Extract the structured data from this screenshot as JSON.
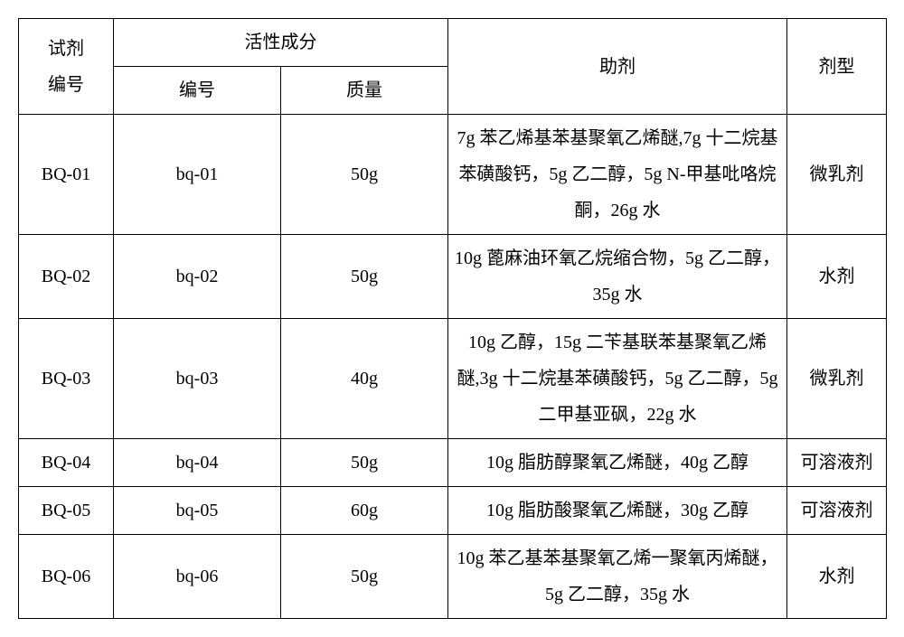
{
  "table": {
    "header": {
      "reagent_no": "试剂\n编号",
      "active_ingredient": "活性成分",
      "code": "编号",
      "mass": "质量",
      "auxiliary": "助剂",
      "form": "剂型"
    },
    "rows": [
      {
        "reagent_no": "BQ-01",
        "code": "bq-01",
        "mass": "50g",
        "auxiliary": "7g 苯乙烯基苯基聚氧乙烯醚,7g 十二烷基苯磺酸钙，5g 乙二醇，5g N-甲基吡咯烷酮，26g 水",
        "form": "微乳剂"
      },
      {
        "reagent_no": "BQ-02",
        "code": "bq-02",
        "mass": "50g",
        "auxiliary": "10g 蓖麻油环氧乙烷缩合物，5g 乙二醇，35g 水",
        "form": "水剂"
      },
      {
        "reagent_no": "BQ-03",
        "code": "bq-03",
        "mass": "40g",
        "auxiliary": "10g 乙醇，15g 二苄基联苯基聚氧乙烯醚,3g 十二烷基苯磺酸钙，5g 乙二醇，5g 二甲基亚砜，22g 水",
        "form": "微乳剂"
      },
      {
        "reagent_no": "BQ-04",
        "code": "bq-04",
        "mass": "50g",
        "auxiliary": "10g 脂肪醇聚氧乙烯醚，40g 乙醇",
        "form": "可溶液剂"
      },
      {
        "reagent_no": "BQ-05",
        "code": "bq-05",
        "mass": "60g",
        "auxiliary": "10g 脂肪酸聚氧乙烯醚，30g 乙醇",
        "form": "可溶液剂"
      },
      {
        "reagent_no": "BQ-06",
        "code": "bq-06",
        "mass": "50g",
        "auxiliary": "10g 苯乙基苯基聚氧乙烯一聚氧丙烯醚，5g 乙二醇，35g 水",
        "form": "水剂"
      }
    ],
    "columns": [
      "reagent_no",
      "code",
      "mass",
      "auxiliary",
      "form"
    ]
  }
}
